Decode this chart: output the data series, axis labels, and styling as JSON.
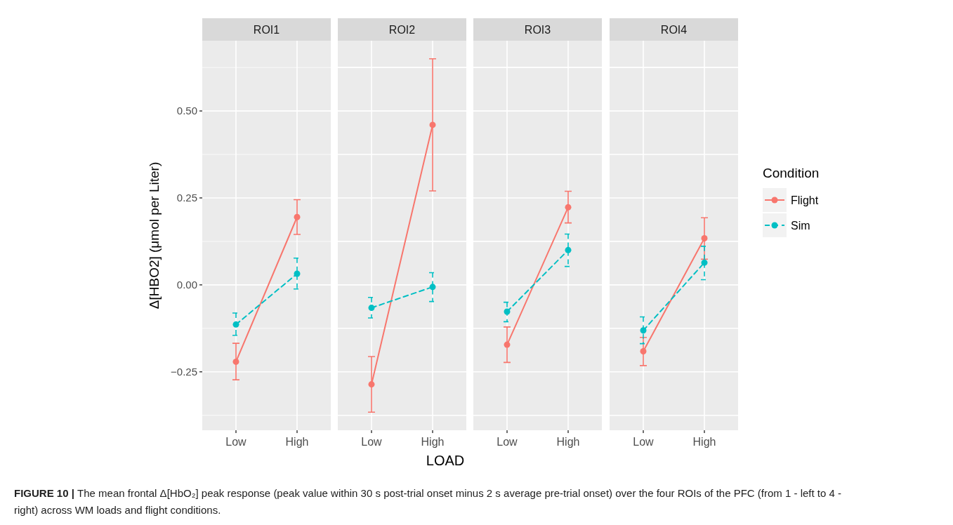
{
  "chart_data": [
    {
      "type": "line",
      "title": "ROI1",
      "ylabel": "Δ[HBO2]  (μmol per Liter)",
      "categories": [
        "Low",
        "High"
      ],
      "ylim": [
        -0.418,
        0.702
      ],
      "yticks": [
        {
          "value": -0.375,
          "label": null
        },
        {
          "value": -0.25,
          "label": "−0.25"
        },
        {
          "value": -0.125,
          "label": null
        },
        {
          "value": 0,
          "label": "0.00"
        },
        {
          "value": 0.125,
          "label": null
        },
        {
          "value": 0.25,
          "label": "0.25"
        },
        {
          "value": 0.375,
          "label": null
        },
        {
          "value": 0.5,
          "label": "0.50"
        },
        {
          "value": 0.625,
          "label": null
        }
      ],
      "grid": true,
      "marker": "circle",
      "legend": false,
      "series": [
        {
          "color": "#f8766d",
          "line_style": "solid",
          "values": [
            -0.221,
            0.195
          ],
          "errors": [
            [
              -0.273,
              -0.168
            ],
            [
              0.145,
              0.245
            ]
          ]
        },
        {
          "color": "#00bfc4",
          "line_style": "dashed",
          "values": [
            -0.114,
            0.032
          ],
          "errors": [
            [
              -0.145,
              -0.081
            ],
            [
              -0.012,
              0.077
            ]
          ]
        }
      ],
      "annotations": [
        "FIGURE 10 | The mean frontal Δ[HbO₂] peak response (peak value within 30 s post-trial onset minus 2 s average pre-trial onset) over the four ROIs of the PFC (from 1 - left to 4 - right) across WM loads and flight conditions."
      ]
    },
    {
      "type": "line",
      "title": "ROI2",
      "xlabel": "LOAD",
      "categories": [
        "Low",
        "High"
      ],
      "ylim": [
        -0.418,
        0.702
      ],
      "yticks": [
        -0.375,
        -0.25,
        -0.125,
        0,
        0.125,
        0.25,
        0.375,
        0.5,
        0.625
      ],
      "tick_labels": "x",
      "grid": true,
      "marker": "circle",
      "legend": false,
      "series": [
        {
          "color": "#f8766d",
          "line_style": "solid",
          "values": [
            -0.286,
            0.46
          ],
          "errors": [
            [
              -0.366,
              -0.206
            ],
            [
              0.27,
              0.65
            ]
          ]
        },
        {
          "color": "#00bfc4",
          "line_style": "dashed",
          "values": [
            -0.066,
            -0.006
          ],
          "errors": [
            [
              -0.095,
              -0.036
            ],
            [
              -0.048,
              0.035
            ]
          ]
        }
      ]
    },
    {
      "type": "line",
      "title": "ROI3",
      "categories": [
        "Low",
        "High"
      ],
      "ylim": [
        -0.418,
        0.702
      ],
      "yticks": [
        -0.375,
        -0.25,
        -0.125,
        0,
        0.125,
        0.25,
        0.375,
        0.5,
        0.625
      ],
      "tick_labels": "x",
      "grid": true,
      "marker": "circle",
      "legend": false,
      "series": [
        {
          "color": "#f8766d",
          "line_style": "solid",
          "values": [
            -0.172,
            0.223
          ],
          "errors": [
            [
              -0.223,
              -0.121
            ],
            [
              0.178,
              0.269
            ]
          ]
        },
        {
          "color": "#00bfc4",
          "line_style": "dashed",
          "values": [
            -0.077,
            0.1
          ],
          "errors": [
            [
              -0.106,
              -0.05
            ],
            [
              0.053,
              0.146
            ]
          ]
        }
      ]
    },
    {
      "type": "line",
      "title": "ROI4",
      "categories": [
        "Low",
        "High"
      ],
      "ylim": [
        -0.418,
        0.702
      ],
      "yticks": [
        -0.375,
        -0.25,
        -0.125,
        0,
        0.125,
        0.25,
        0.375,
        0.5,
        0.625
      ],
      "tick_labels": "x",
      "grid": true,
      "marker": "circle",
      "legend": "right",
      "legend_title": "Condition",
      "series": [
        {
          "name": "Flight",
          "color": "#f8766d",
          "line_style": "solid",
          "values": [
            -0.191,
            0.134
          ],
          "errors": [
            [
              -0.232,
              -0.151
            ],
            [
              0.074,
              0.193
            ]
          ]
        },
        {
          "name": "Sim",
          "color": "#00bfc4",
          "line_style": "dashed",
          "values": [
            -0.131,
            0.064
          ],
          "errors": [
            [
              -0.169,
              -0.092
            ],
            [
              0.015,
              0.111
            ]
          ]
        }
      ]
    }
  ]
}
